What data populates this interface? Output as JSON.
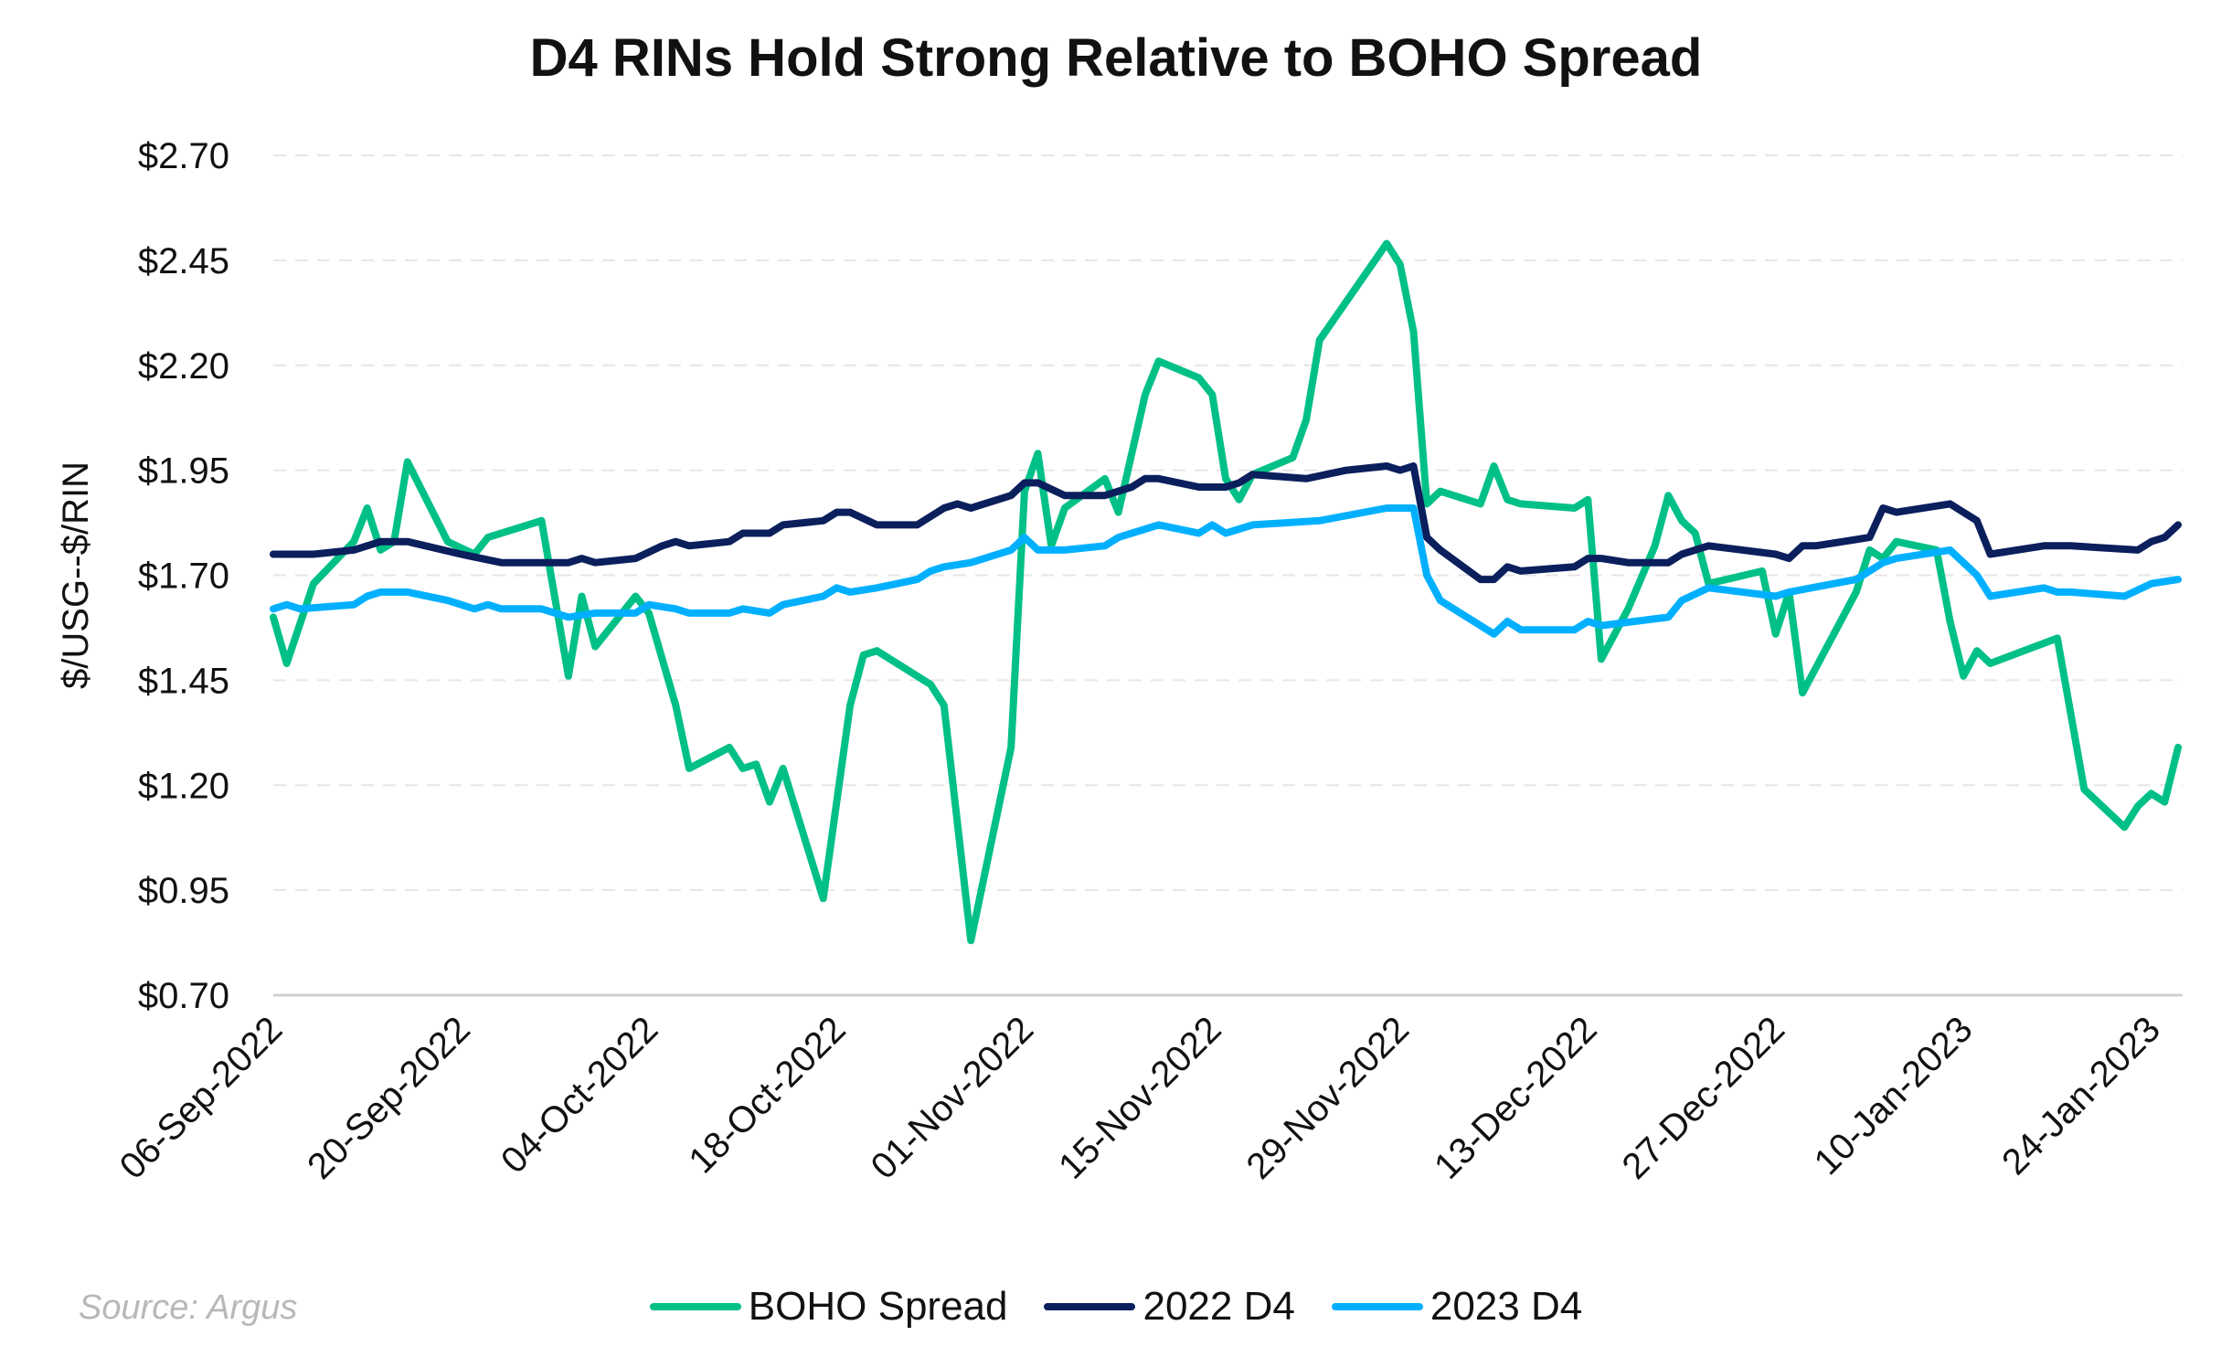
{
  "chart_data": {
    "type": "line",
    "title": "D4 RINs Hold Strong Relative to BOHO Spread",
    "ylabel": "$/USG--$/RIN",
    "xlabel": "",
    "ylim": [
      0.7,
      2.7
    ],
    "xlim": [
      "2022-09-06",
      "2023-01-26"
    ],
    "yticks": [
      "$0.70",
      "$0.95",
      "$1.20",
      "$1.45",
      "$1.70",
      "$1.95",
      "$2.20",
      "$2.45",
      "$2.70"
    ],
    "ytick_values": [
      0.7,
      0.95,
      1.2,
      1.45,
      1.7,
      1.95,
      2.2,
      2.45,
      2.7
    ],
    "xticks": [
      "06-Sep-2022",
      "20-Sep-2022",
      "04-Oct-2022",
      "18-Oct-2022",
      "01-Nov-2022",
      "15-Nov-2022",
      "29-Nov-2022",
      "13-Dec-2022",
      "27-Dec-2022",
      "10-Jan-2023",
      "24-Jan-2023"
    ],
    "xtick_dates": [
      "2022-09-06",
      "2022-09-20",
      "2022-10-04",
      "2022-10-18",
      "2022-11-01",
      "2022-11-15",
      "2022-11-29",
      "2022-12-13",
      "2022-12-27",
      "2023-01-10",
      "2023-01-24"
    ],
    "grid": "horizontal dashed",
    "legend": "bottom",
    "source": "Source: Argus",
    "series": [
      {
        "name": "BOHO Spread",
        "color": "#00c087",
        "points": [
          [
            "2022-09-06",
            1.6
          ],
          [
            "2022-09-07",
            1.49
          ],
          [
            "2022-09-09",
            1.68
          ],
          [
            "2022-09-12",
            1.78
          ],
          [
            "2022-09-13",
            1.86
          ],
          [
            "2022-09-14",
            1.76
          ],
          [
            "2022-09-15",
            1.78
          ],
          [
            "2022-09-16",
            1.97
          ],
          [
            "2022-09-19",
            1.78
          ],
          [
            "2022-09-21",
            1.75
          ],
          [
            "2022-09-22",
            1.79
          ],
          [
            "2022-09-26",
            1.83
          ],
          [
            "2022-09-28",
            1.46
          ],
          [
            "2022-09-29",
            1.65
          ],
          [
            "2022-09-30",
            1.53
          ],
          [
            "2022-10-03",
            1.65
          ],
          [
            "2022-10-04",
            1.61
          ],
          [
            "2022-10-06",
            1.39
          ],
          [
            "2022-10-07",
            1.24
          ],
          [
            "2022-10-10",
            1.29
          ],
          [
            "2022-10-11",
            1.24
          ],
          [
            "2022-10-12",
            1.25
          ],
          [
            "2022-10-13",
            1.16
          ],
          [
            "2022-10-14",
            1.24
          ],
          [
            "2022-10-17",
            0.93
          ],
          [
            "2022-10-19",
            1.39
          ],
          [
            "2022-10-20",
            1.51
          ],
          [
            "2022-10-21",
            1.52
          ],
          [
            "2022-10-25",
            1.44
          ],
          [
            "2022-10-26",
            1.39
          ],
          [
            "2022-10-28",
            0.83
          ],
          [
            "2022-10-31",
            1.29
          ],
          [
            "2022-11-01",
            1.9
          ],
          [
            "2022-11-02",
            1.99
          ],
          [
            "2022-11-03",
            1.77
          ],
          [
            "2022-11-04",
            1.86
          ],
          [
            "2022-11-07",
            1.93
          ],
          [
            "2022-11-08",
            1.85
          ],
          [
            "2022-11-10",
            2.13
          ],
          [
            "2022-11-11",
            2.21
          ],
          [
            "2022-11-14",
            2.17
          ],
          [
            "2022-11-15",
            2.13
          ],
          [
            "2022-11-16",
            1.93
          ],
          [
            "2022-11-17",
            1.88
          ],
          [
            "2022-11-18",
            1.94
          ],
          [
            "2022-11-21",
            1.98
          ],
          [
            "2022-11-22",
            2.07
          ],
          [
            "2022-11-23",
            2.26
          ],
          [
            "2022-11-28",
            2.49
          ],
          [
            "2022-11-29",
            2.44
          ],
          [
            "2022-11-30",
            2.28
          ],
          [
            "2022-12-01",
            1.87
          ],
          [
            "2022-12-02",
            1.9
          ],
          [
            "2022-12-05",
            1.87
          ],
          [
            "2022-12-06",
            1.96
          ],
          [
            "2022-12-07",
            1.88
          ],
          [
            "2022-12-08",
            1.87
          ],
          [
            "2022-12-12",
            1.86
          ],
          [
            "2022-12-13",
            1.88
          ],
          [
            "2022-12-14",
            1.5
          ],
          [
            "2022-12-16",
            1.62
          ],
          [
            "2022-12-18",
            1.77
          ],
          [
            "2022-12-19",
            1.89
          ],
          [
            "2022-12-20",
            1.83
          ],
          [
            "2022-12-21",
            1.8
          ],
          [
            "2022-12-22",
            1.68
          ],
          [
            "2022-12-26",
            1.71
          ],
          [
            "2022-12-27",
            1.56
          ],
          [
            "2022-12-28",
            1.66
          ],
          [
            "2022-12-29",
            1.42
          ],
          [
            "2023-01-02",
            1.66
          ],
          [
            "2023-01-03",
            1.76
          ],
          [
            "2023-01-04",
            1.74
          ],
          [
            "2023-01-05",
            1.78
          ],
          [
            "2023-01-08",
            1.76
          ],
          [
            "2023-01-09",
            1.59
          ],
          [
            "2023-01-10",
            1.46
          ],
          [
            "2023-01-11",
            1.52
          ],
          [
            "2023-01-12",
            1.49
          ],
          [
            "2023-01-17",
            1.55
          ],
          [
            "2023-01-19",
            1.19
          ],
          [
            "2023-01-22",
            1.1
          ],
          [
            "2023-01-23",
            1.15
          ],
          [
            "2023-01-24",
            1.18
          ],
          [
            "2023-01-25",
            1.16
          ],
          [
            "2023-01-26",
            1.29
          ]
        ]
      },
      {
        "name": "2022 D4",
        "color": "#0a1f5c",
        "points": [
          [
            "2022-09-06",
            1.75
          ],
          [
            "2022-09-07",
            1.75
          ],
          [
            "2022-09-09",
            1.75
          ],
          [
            "2022-09-12",
            1.76
          ],
          [
            "2022-09-14",
            1.78
          ],
          [
            "2022-09-16",
            1.78
          ],
          [
            "2022-09-20",
            1.75
          ],
          [
            "2022-09-23",
            1.73
          ],
          [
            "2022-09-26",
            1.73
          ],
          [
            "2022-09-28",
            1.73
          ],
          [
            "2022-09-29",
            1.74
          ],
          [
            "2022-09-30",
            1.73
          ],
          [
            "2022-10-03",
            1.74
          ],
          [
            "2022-10-05",
            1.77
          ],
          [
            "2022-10-06",
            1.78
          ],
          [
            "2022-10-07",
            1.77
          ],
          [
            "2022-10-10",
            1.78
          ],
          [
            "2022-10-11",
            1.8
          ],
          [
            "2022-10-13",
            1.8
          ],
          [
            "2022-10-14",
            1.82
          ],
          [
            "2022-10-17",
            1.83
          ],
          [
            "2022-10-18",
            1.85
          ],
          [
            "2022-10-19",
            1.85
          ],
          [
            "2022-10-21",
            1.82
          ],
          [
            "2022-10-24",
            1.82
          ],
          [
            "2022-10-26",
            1.86
          ],
          [
            "2022-10-27",
            1.87
          ],
          [
            "2022-10-28",
            1.86
          ],
          [
            "2022-10-31",
            1.89
          ],
          [
            "2022-11-01",
            1.92
          ],
          [
            "2022-11-02",
            1.92
          ],
          [
            "2022-11-04",
            1.89
          ],
          [
            "2022-11-07",
            1.89
          ],
          [
            "2022-11-09",
            1.91
          ],
          [
            "2022-11-10",
            1.93
          ],
          [
            "2022-11-11",
            1.93
          ],
          [
            "2022-11-14",
            1.91
          ],
          [
            "2022-11-16",
            1.91
          ],
          [
            "2022-11-17",
            1.92
          ],
          [
            "2022-11-18",
            1.94
          ],
          [
            "2022-11-22",
            1.93
          ],
          [
            "2022-11-25",
            1.95
          ],
          [
            "2022-11-28",
            1.96
          ],
          [
            "2022-11-29",
            1.95
          ],
          [
            "2022-11-30",
            1.96
          ],
          [
            "2022-12-01",
            1.79
          ],
          [
            "2022-12-02",
            1.76
          ],
          [
            "2022-12-05",
            1.69
          ],
          [
            "2022-12-06",
            1.69
          ],
          [
            "2022-12-07",
            1.72
          ],
          [
            "2022-12-08",
            1.71
          ],
          [
            "2022-12-12",
            1.72
          ],
          [
            "2022-12-13",
            1.74
          ],
          [
            "2022-12-14",
            1.74
          ],
          [
            "2022-12-16",
            1.73
          ],
          [
            "2022-12-19",
            1.73
          ],
          [
            "2022-12-20",
            1.75
          ],
          [
            "2022-12-22",
            1.77
          ],
          [
            "2022-12-27",
            1.75
          ],
          [
            "2022-12-28",
            1.74
          ],
          [
            "2022-12-29",
            1.77
          ],
          [
            "2022-12-30",
            1.77
          ],
          [
            "2023-01-03",
            1.79
          ],
          [
            "2023-01-04",
            1.86
          ],
          [
            "2023-01-05",
            1.85
          ],
          [
            "2023-01-09",
            1.87
          ],
          [
            "2023-01-10",
            1.85
          ],
          [
            "2023-01-11",
            1.83
          ],
          [
            "2023-01-12",
            1.75
          ],
          [
            "2023-01-16",
            1.77
          ],
          [
            "2023-01-17",
            1.77
          ],
          [
            "2023-01-18",
            1.77
          ],
          [
            "2023-01-23",
            1.76
          ],
          [
            "2023-01-24",
            1.78
          ],
          [
            "2023-01-25",
            1.79
          ],
          [
            "2023-01-26",
            1.82
          ]
        ]
      },
      {
        "name": "2023 D4",
        "color": "#00b0ff",
        "points": [
          [
            "2022-09-06",
            1.62
          ],
          [
            "2022-09-07",
            1.63
          ],
          [
            "2022-09-08",
            1.62
          ],
          [
            "2022-09-12",
            1.63
          ],
          [
            "2022-09-13",
            1.65
          ],
          [
            "2022-09-14",
            1.66
          ],
          [
            "2022-09-16",
            1.66
          ],
          [
            "2022-09-19",
            1.64
          ],
          [
            "2022-09-21",
            1.62
          ],
          [
            "2022-09-22",
            1.63
          ],
          [
            "2022-09-23",
            1.62
          ],
          [
            "2022-09-26",
            1.62
          ],
          [
            "2022-09-28",
            1.6
          ],
          [
            "2022-09-30",
            1.61
          ],
          [
            "2022-10-03",
            1.61
          ],
          [
            "2022-10-04",
            1.63
          ],
          [
            "2022-10-06",
            1.62
          ],
          [
            "2022-10-07",
            1.61
          ],
          [
            "2022-10-10",
            1.61
          ],
          [
            "2022-10-11",
            1.62
          ],
          [
            "2022-10-13",
            1.61
          ],
          [
            "2022-10-14",
            1.63
          ],
          [
            "2022-10-17",
            1.65
          ],
          [
            "2022-10-18",
            1.67
          ],
          [
            "2022-10-19",
            1.66
          ],
          [
            "2022-10-21",
            1.67
          ],
          [
            "2022-10-24",
            1.69
          ],
          [
            "2022-10-25",
            1.71
          ],
          [
            "2022-10-26",
            1.72
          ],
          [
            "2022-10-28",
            1.73
          ],
          [
            "2022-10-31",
            1.76
          ],
          [
            "2022-11-01",
            1.79
          ],
          [
            "2022-11-02",
            1.76
          ],
          [
            "2022-11-04",
            1.76
          ],
          [
            "2022-11-07",
            1.77
          ],
          [
            "2022-11-08",
            1.79
          ],
          [
            "2022-11-10",
            1.81
          ],
          [
            "2022-11-11",
            1.82
          ],
          [
            "2022-11-14",
            1.8
          ],
          [
            "2022-11-15",
            1.82
          ],
          [
            "2022-11-16",
            1.8
          ],
          [
            "2022-11-17",
            1.81
          ],
          [
            "2022-11-18",
            1.82
          ],
          [
            "2022-11-23",
            1.83
          ],
          [
            "2022-11-28",
            1.86
          ],
          [
            "2022-11-29",
            1.86
          ],
          [
            "2022-11-30",
            1.86
          ],
          [
            "2022-12-01",
            1.7
          ],
          [
            "2022-12-02",
            1.64
          ],
          [
            "2022-12-05",
            1.58
          ],
          [
            "2022-12-06",
            1.56
          ],
          [
            "2022-12-07",
            1.59
          ],
          [
            "2022-12-08",
            1.57
          ],
          [
            "2022-12-12",
            1.57
          ],
          [
            "2022-12-13",
            1.59
          ],
          [
            "2022-12-14",
            1.58
          ],
          [
            "2022-12-19",
            1.6
          ],
          [
            "2022-12-20",
            1.64
          ],
          [
            "2022-12-22",
            1.67
          ],
          [
            "2022-12-27",
            1.65
          ],
          [
            "2022-12-28",
            1.66
          ],
          [
            "2023-01-02",
            1.69
          ],
          [
            "2023-01-04",
            1.73
          ],
          [
            "2023-01-05",
            1.74
          ],
          [
            "2023-01-09",
            1.76
          ],
          [
            "2023-01-10",
            1.73
          ],
          [
            "2023-01-11",
            1.7
          ],
          [
            "2023-01-12",
            1.65
          ],
          [
            "2023-01-16",
            1.67
          ],
          [
            "2023-01-17",
            1.66
          ],
          [
            "2023-01-18",
            1.66
          ],
          [
            "2023-01-22",
            1.65
          ],
          [
            "2023-01-24",
            1.68
          ],
          [
            "2023-01-26",
            1.69
          ]
        ]
      }
    ]
  }
}
